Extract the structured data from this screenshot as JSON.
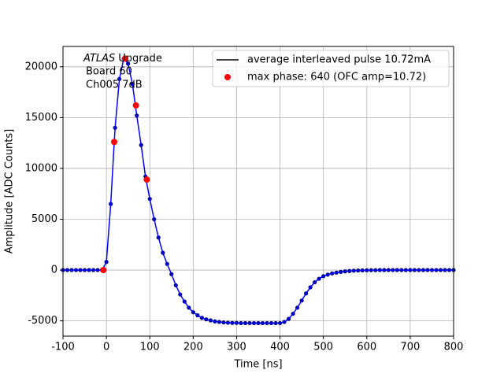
{
  "chart_data": {
    "type": "line",
    "xlabel": "Time [ns]",
    "ylabel": "Amplitude [ADC Counts]",
    "annotation": {
      "italic": "ATLAS",
      "rest": "Upgrade",
      "lines": [
        "Board 60",
        "Ch005 7dB"
      ]
    },
    "xlim": [
      -100,
      800
    ],
    "xticks": [
      -100,
      0,
      100,
      200,
      300,
      400,
      500,
      600,
      700,
      800
    ],
    "ylim": [
      -6500,
      22000
    ],
    "yticks": [
      -5000,
      0,
      5000,
      10000,
      15000,
      20000
    ],
    "grid": true,
    "legend": "upper right",
    "series": [
      {
        "name": "average interleaved pulse 10.72mA",
        "color": "#0000ff",
        "marker_color": "#00008b",
        "legend_color": "#000000",
        "x": [
          -100,
          -90,
          -80,
          -70,
          -60,
          -50,
          -40,
          -30,
          -20,
          -10,
          0,
          10,
          20,
          30,
          40,
          50,
          60,
          70,
          80,
          90,
          100,
          110,
          120,
          130,
          140,
          150,
          160,
          170,
          180,
          190,
          200,
          210,
          220,
          230,
          240,
          250,
          260,
          270,
          280,
          290,
          300,
          310,
          320,
          330,
          340,
          350,
          360,
          370,
          380,
          390,
          400,
          410,
          420,
          430,
          440,
          450,
          460,
          470,
          480,
          490,
          500,
          510,
          520,
          530,
          540,
          550,
          560,
          570,
          580,
          590,
          600,
          610,
          620,
          630,
          640,
          650,
          660,
          670,
          680,
          690,
          700,
          710,
          720,
          730,
          740,
          750,
          760,
          770,
          780,
          790,
          800
        ],
        "values": [
          0,
          0,
          0,
          0,
          0,
          0,
          0,
          0,
          0,
          0,
          800,
          6500,
          14000,
          18800,
          20800,
          20300,
          18300,
          15200,
          12300,
          9200,
          7000,
          5000,
          3200,
          1700,
          600,
          -400,
          -1500,
          -2400,
          -3100,
          -3700,
          -4150,
          -4450,
          -4700,
          -4850,
          -4950,
          -5050,
          -5100,
          -5150,
          -5180,
          -5200,
          -5200,
          -5220,
          -5220,
          -5220,
          -5220,
          -5220,
          -5220,
          -5220,
          -5220,
          -5220,
          -5220,
          -5100,
          -4800,
          -4300,
          -3700,
          -3000,
          -2300,
          -1700,
          -1200,
          -850,
          -600,
          -450,
          -330,
          -250,
          -180,
          -130,
          -90,
          -60,
          -40,
          -30,
          -20,
          -10,
          -10,
          0,
          0,
          0,
          0,
          0,
          0,
          0,
          0,
          0,
          0,
          0,
          0,
          0,
          0,
          0,
          0,
          0,
          0
        ]
      },
      {
        "name": "max phase: 640 (OFC amp=10.72)",
        "color": "#ff0000",
        "kind": "scatter",
        "x": [
          -7,
          18,
          43,
          68,
          93
        ],
        "values": [
          0,
          12600,
          20800,
          16200,
          8900
        ]
      }
    ]
  }
}
